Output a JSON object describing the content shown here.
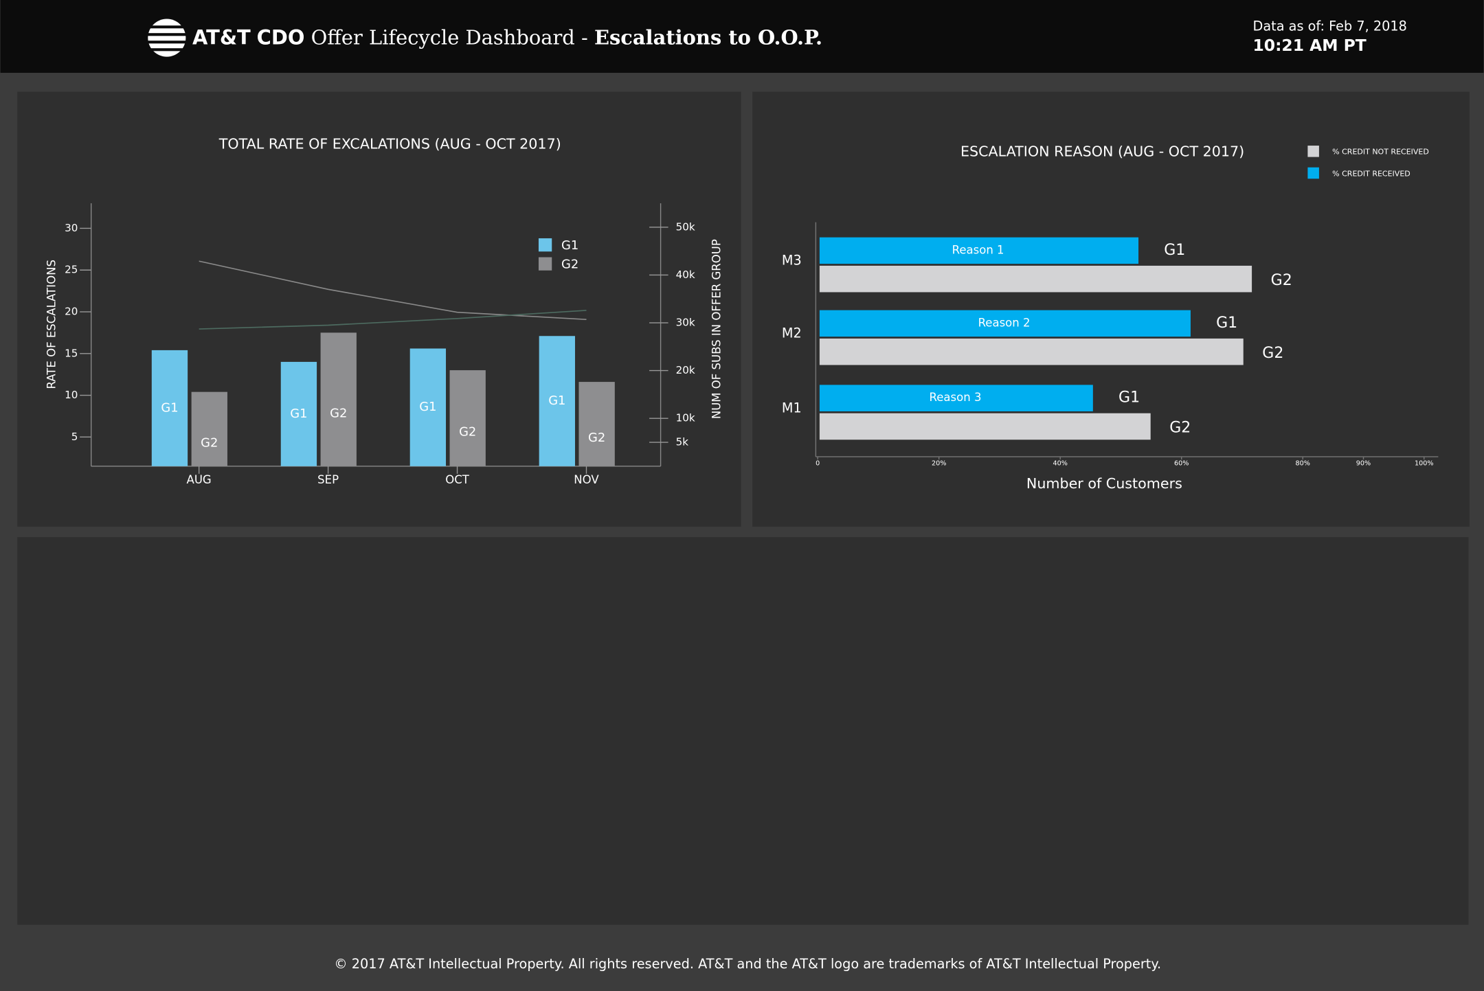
{
  "header": {
    "logo": "AT&T",
    "title_prefix": "CDO",
    "title_main": "Offer Lifecycle Dashboard -",
    "title_bold": "Escalations to O.O.P.",
    "data_as_of_label": "Data as of:",
    "data_as_of_date": "Feb 7, 2018",
    "data_as_of_time": "10:21 AM PT"
  },
  "chart_data": [
    {
      "type": "bar",
      "title": "TOTAL RATE OF EXCALATIONS (AUG - OCT 2017)",
      "y_label": "RATE OF ESCALATIONS",
      "y2_label": "NUM OF SUBS IN OFFER GROUP",
      "categories": [
        "AUG",
        "SEP",
        "OCT",
        "NOV"
      ],
      "series": [
        {
          "name": "G1",
          "color": "#6cc5ea",
          "values": [
            15.4,
            14.0,
            15.6,
            17.1
          ]
        },
        {
          "name": "G2",
          "color": "#8e8e90",
          "values": [
            10.4,
            17.5,
            13.0,
            11.6
          ]
        }
      ],
      "lines": [
        {
          "color": "#8a8a8a",
          "axis": "y2",
          "values": [
            42900,
            37000,
            32200,
            30700
          ]
        },
        {
          "color": "#4d6b60",
          "axis": "y2",
          "values": [
            28700,
            29500,
            30900,
            32600
          ]
        }
      ],
      "ylim": [
        1.5,
        33
      ],
      "yticks": [
        5,
        10,
        15,
        20,
        25,
        30
      ],
      "y2lim": [
        0,
        55000
      ],
      "y2ticks": [
        {
          "value": 5000,
          "label": "5k"
        },
        {
          "value": 10000,
          "label": "10k"
        },
        {
          "value": 20000,
          "label": "20k"
        },
        {
          "value": 30000,
          "label": "30k"
        },
        {
          "value": 40000,
          "label": "40k"
        },
        {
          "value": 50000,
          "label": "50k"
        }
      ],
      "legend": "top-right"
    },
    {
      "type": "hbar",
      "title": "ESCALATION REASON (AUG - OCT 2017)",
      "x_label": "Number of Customers",
      "categories": [
        "M3",
        "M2",
        "M1"
      ],
      "series": [
        {
          "name": "% CREDIT NOT RECEIVED",
          "group": "G2",
          "color": "#d3d3d5",
          "values": [
            71.6,
            70.2,
            54.9
          ]
        },
        {
          "name": "% CREDIT RECEIVED",
          "group": "G1",
          "color": "#00aeef",
          "values": [
            52.9,
            61.5,
            45.4
          ],
          "bar_labels": [
            "Reason 1",
            "Reason 2",
            "Reason 3"
          ]
        }
      ],
      "xlim": [
        0,
        100
      ],
      "xticks": [
        0,
        {
          "value": 20,
          "label": "20%"
        },
        {
          "value": 40,
          "label": "40%"
        },
        {
          "value": 60,
          "label": "60%"
        },
        {
          "value": 80,
          "label": "80%"
        },
        {
          "value": 90,
          "label": "90%"
        },
        {
          "value": 100,
          "label": "100%"
        }
      ],
      "legend": "top-right"
    }
  ],
  "footer": "© 2017 AT&T Intellectual Property. All rights reserved. AT&T and the AT&T logo are trademarks of AT&T Intellectual Property."
}
